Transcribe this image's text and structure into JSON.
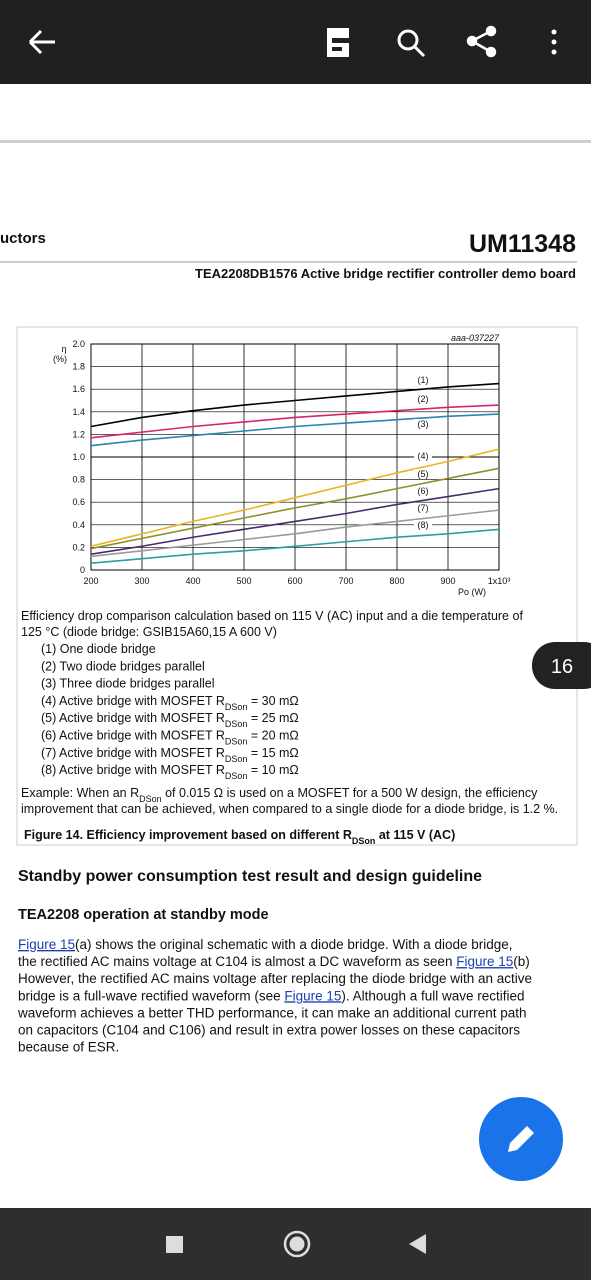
{
  "document": {
    "header_left": "uctors",
    "doc_id": "UM11348",
    "doc_subtitle": "TEA2208DB1576 Active bridge rectifier controller demo board",
    "description": [
      "Efficiency drop comparison calculation based on 115 V (AC) input and a die temperature of",
      "125 °C (diode bridge: GSIB15A60,15 A 600 V)"
    ],
    "items": [
      {
        "text": "(1) One diode bridge"
      },
      {
        "text": "(2) Two diode bridges parallel"
      },
      {
        "text": "(3) Three diode bridges parallel"
      },
      {
        "text": "(4) Active bridge with MOSFET R",
        "sub": "DSon",
        "suffix": " = 30 mΩ"
      },
      {
        "text": "(5) Active bridge with MOSFET R",
        "sub": "DSon",
        "suffix": " = 25 mΩ"
      },
      {
        "text": "(6) Active bridge with MOSFET R",
        "sub": "DSon",
        "suffix": " = 20 mΩ"
      },
      {
        "text": "(7) Active bridge with MOSFET R",
        "sub": "DSon",
        "suffix": " = 15 mΩ"
      },
      {
        "text": "(8) Active bridge with MOSFET R",
        "sub": "DSon",
        "suffix": " = 10 mΩ"
      }
    ],
    "example": [
      {
        "text": "Example: When an R",
        "sub": "DSon",
        "suffix": " of 0.015 Ω is used on a MOSFET for a 500 W design, the efficiency"
      },
      {
        "text": "improvement that can be achieved, when compared to a single diode for a diode bridge, is 1.2 %."
      }
    ],
    "caption": {
      "text": "Figure 14.  Efficiency improvement based on different R",
      "sub": "DSon",
      "suffix": " at 115 V (AC)"
    },
    "section_heading": "Standby power consumption test result and design guideline",
    "subsection_heading": "TEA2208 operation at standby mode",
    "paragraph": [
      [
        {
          "text": "Figure 15",
          "link": true
        },
        {
          "text": "(a) shows the original schematic with a diode bridge. With a diode bridge,"
        }
      ],
      [
        {
          "text": "the rectified AC mains voltage at C104 is almost a DC waveform as seen "
        },
        {
          "text": "Figure 15",
          "link": true
        },
        {
          "text": "(b)"
        }
      ],
      [
        {
          "text": "However, the rectified AC mains voltage after replacing the diode bridge with an active"
        }
      ],
      [
        {
          "text": "bridge is a full-wave rectified waveform (see "
        },
        {
          "text": "Figure 15",
          "link": true
        },
        {
          "text": "). Although a full wave rectified"
        }
      ],
      [
        {
          "text": "waveform achieves a better THD performance, it can make an additional current path"
        }
      ],
      [
        {
          "text": "on capacitors (C104 and C106) and result in extra power losses on these capacitors"
        }
      ],
      [
        {
          "text": "because of ESR."
        }
      ]
    ]
  },
  "page_badge": "16",
  "chart_data": {
    "type": "line",
    "figure_id": "aaa-037227",
    "ylabel": "η",
    "ylabel_unit": "(%)",
    "xlabel": "Po (W)",
    "x": [
      200,
      300,
      400,
      500,
      600,
      700,
      800,
      900,
      1000
    ],
    "xlim": [
      200,
      1000
    ],
    "xticks": [
      200,
      300,
      400,
      500,
      600,
      700,
      800,
      900,
      {
        "value": 1000,
        "label": "1x10³"
      }
    ],
    "ylim": [
      0,
      2
    ],
    "yticks": [
      0,
      0.2,
      0.4,
      0.6,
      0.8,
      {
        "value": 1,
        "label": "1.0"
      },
      1.2,
      1.4,
      1.6,
      1.8,
      {
        "value": 2,
        "label": "2.0"
      }
    ],
    "grid": true,
    "series": [
      {
        "name": "(1)",
        "color": "#000000",
        "values": [
          1.27,
          1.35,
          1.41,
          1.46,
          1.5,
          1.54,
          1.58,
          1.62,
          1.65
        ]
      },
      {
        "name": "(2)",
        "color": "#d6246e",
        "values": [
          1.17,
          1.22,
          1.27,
          1.31,
          1.35,
          1.38,
          1.41,
          1.44,
          1.46
        ]
      },
      {
        "name": "(3)",
        "color": "#2a86b0",
        "values": [
          1.1,
          1.15,
          1.19,
          1.23,
          1.27,
          1.3,
          1.33,
          1.36,
          1.38
        ]
      },
      {
        "name": "(4)",
        "color": "#e8b520",
        "values": [
          0.21,
          0.32,
          0.43,
          0.53,
          0.64,
          0.75,
          0.86,
          0.96,
          1.07
        ]
      },
      {
        "name": "(5)",
        "color": "#8f8f2a",
        "values": [
          0.19,
          0.28,
          0.37,
          0.46,
          0.55,
          0.63,
          0.72,
          0.81,
          0.9
        ]
      },
      {
        "name": "(6)",
        "color": "#4a2a6e",
        "values": [
          0.14,
          0.21,
          0.29,
          0.36,
          0.43,
          0.5,
          0.58,
          0.65,
          0.72
        ]
      },
      {
        "name": "(7)",
        "color": "#9a9a9a",
        "values": [
          0.12,
          0.17,
          0.22,
          0.27,
          0.32,
          0.38,
          0.43,
          0.48,
          0.53
        ]
      },
      {
        "name": "(8)",
        "color": "#2aa19a",
        "values": [
          0.06,
          0.1,
          0.14,
          0.17,
          0.21,
          0.25,
          0.29,
          0.32,
          0.36
        ]
      }
    ]
  }
}
